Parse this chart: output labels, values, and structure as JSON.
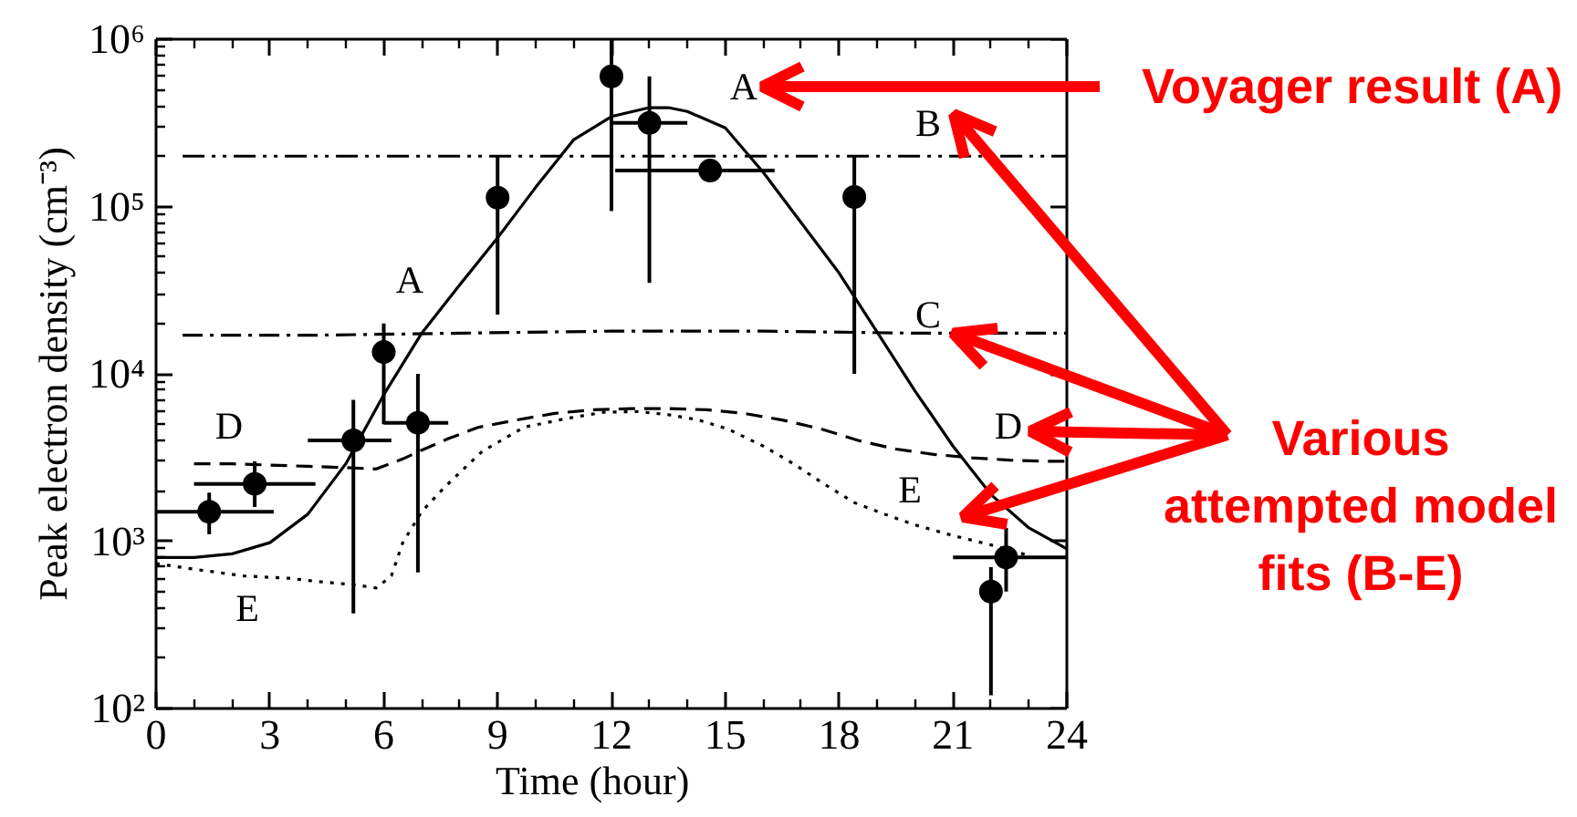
{
  "chart_data": {
    "type": "line",
    "xlabel": "Time (hour)",
    "ylabel": "Peak electron density (cm⁻³)",
    "xlim": [
      0,
      24
    ],
    "xticks": [
      0,
      3,
      6,
      9,
      12,
      15,
      18,
      21,
      24
    ],
    "ylim": [
      100,
      1000000
    ],
    "yticks": [
      {
        "value": 100,
        "label": "10²"
      },
      {
        "value": 1000,
        "label": "10³"
      },
      {
        "value": 10000,
        "label": "10⁴"
      },
      {
        "value": 100000,
        "label": "10⁵"
      },
      {
        "value": 1000000,
        "label": "10⁶"
      }
    ],
    "log": true,
    "grid": false,
    "series": [
      {
        "name": "A",
        "color": "#000000",
        "line_style": "solid",
        "x": [
          0,
          1,
          2,
          3,
          4,
          5,
          6,
          7,
          8,
          9,
          10,
          11,
          12,
          13,
          13.5,
          14,
          15,
          16,
          17,
          18,
          19,
          20,
          21,
          22,
          23,
          24
        ],
        "values": [
          800,
          800,
          840,
          980,
          1450,
          2900,
          7500,
          17500,
          34000,
          65000,
          130000,
          250000,
          345000,
          390000,
          390000,
          370000,
          295000,
          160000,
          80000,
          40000,
          17800,
          7900,
          3700,
          1900,
          1200,
          900
        ]
      },
      {
        "name": "B",
        "color": "#000000",
        "line_style": "dashdotdot",
        "x": [
          0.7,
          6,
          12,
          18,
          24
        ],
        "values": [
          200000,
          200000,
          200000,
          200000,
          200000
        ]
      },
      {
        "name": "C",
        "color": "#000000",
        "line_style": "dashdot",
        "x": [
          0.7,
          4,
          8,
          12,
          16,
          20,
          24
        ],
        "values": [
          17000,
          17000,
          17500,
          18000,
          18000,
          17500,
          17500
        ]
      },
      {
        "name": "D",
        "color": "#000000",
        "line_style": "dashed",
        "x": [
          1,
          2,
          3,
          4,
          5,
          5.8,
          6.5,
          7,
          7.7,
          8.5,
          9.5,
          10.5,
          11.5,
          12.5,
          13.5,
          14.5,
          15.5,
          16.5,
          17.5,
          18.5,
          19.5,
          20.5,
          21.5,
          22.5,
          23.5,
          24
        ],
        "values": [
          2900,
          2900,
          2850,
          2800,
          2750,
          2700,
          3100,
          3500,
          4100,
          4800,
          5300,
          5800,
          6100,
          6200,
          6200,
          6100,
          5800,
          5300,
          4700,
          4000,
          3550,
          3300,
          3150,
          3050,
          3000,
          3000
        ]
      },
      {
        "name": "E",
        "color": "#000000",
        "line_style": "dotted",
        "x": [
          0,
          1,
          2.3,
          3.5,
          4.4,
          5.2,
          5.8,
          6.2,
          6.5,
          7,
          7.6,
          8.6,
          9.7,
          10.8,
          11.8,
          12.7,
          13.5,
          14.3,
          15.1,
          16,
          16.8,
          17.6,
          18.4,
          19.2,
          20,
          21,
          22,
          23
        ],
        "values": [
          735,
          680,
          620,
          600,
          570,
          550,
          525,
          620,
          980,
          1500,
          2100,
          3450,
          4800,
          5400,
          5900,
          5950,
          5700,
          5300,
          4650,
          3700,
          2900,
          2200,
          1700,
          1450,
          1250,
          1080,
          950,
          820
        ]
      },
      {
        "type": "scatter",
        "color": "#000000",
        "marker": "circle",
        "x": [
          1.4,
          2.6,
          5.2,
          6.0,
          6.9,
          9.0,
          12.0,
          13.0,
          14.6,
          18.4,
          22.0,
          22.4
        ],
        "values": [
          1500,
          2200,
          4000,
          13500,
          5100,
          113000,
          600000,
          316000,
          164000,
          114000,
          500,
          800
        ],
        "errors": [
          [
            1100,
            1950
          ],
          [
            1600,
            3000
          ],
          [
            370,
            7000
          ],
          [
            5000,
            20000
          ],
          [
            650,
            10000
          ],
          [
            22600,
            200000
          ],
          [
            94000,
            1000000
          ],
          [
            35000,
            600000
          ],
          null,
          [
            10000,
            200000
          ],
          [
            120,
            700
          ],
          [
            500,
            1200
          ]
        ],
        "xerrors": [
          [
            0,
            3.1
          ],
          [
            1.0,
            4.2
          ],
          [
            4.0,
            6.2
          ],
          null,
          [
            6.0,
            7.7
          ],
          null,
          null,
          [
            12.0,
            14.0
          ],
          [
            12.1,
            16.3
          ],
          null,
          null,
          [
            21.0,
            24.0
          ]
        ]
      }
    ],
    "annotations": [
      "Voyager result (A)",
      {
        "text": "Various attempted model fits (B-E)",
        "x": 21,
        "y": 17500
      }
    ]
  }
}
